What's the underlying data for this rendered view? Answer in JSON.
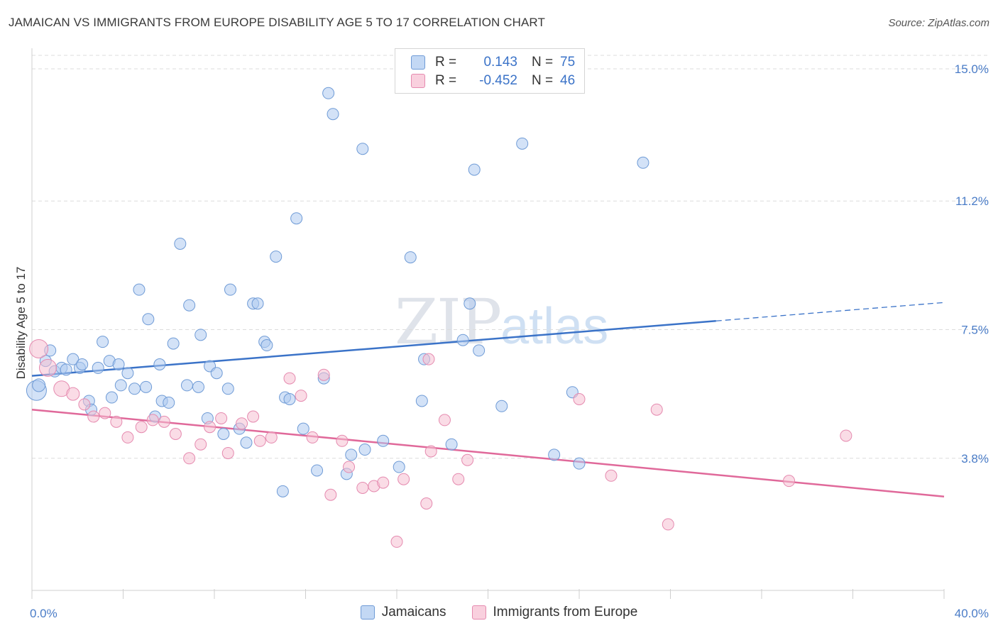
{
  "title": "JAMAICAN VS IMMIGRANTS FROM EUROPE DISABILITY AGE 5 TO 17 CORRELATION CHART",
  "source": "Source: ZipAtlas.com",
  "watermark": {
    "zip": "ZIP",
    "atlas": "atlas"
  },
  "colors": {
    "blue": "#3b73c8",
    "blue_fill": "#aecbf0",
    "pink": "#e0699a",
    "pink_fill": "#f6bfd2",
    "grid": "#dcdcdc"
  },
  "legend": {
    "rows": [
      {
        "r_label": "R =",
        "r_value": "0.143",
        "n_label": "N =",
        "n_value": "75"
      },
      {
        "r_label": "R =",
        "r_value": "-0.452",
        "n_label": "N =",
        "n_value": "46"
      }
    ]
  },
  "bottom_legend": [
    "Jamaicans",
    "Immigrants from Europe"
  ],
  "chart_data": {
    "type": "scatter",
    "ylabel": "Disability Age 5 to 17",
    "xlabel": "",
    "xlim": [
      0,
      40
    ],
    "ylim": [
      0,
      15.6
    ],
    "y_ticks": [
      {
        "v": 3.8,
        "label": "3.8%"
      },
      {
        "v": 7.5,
        "label": "7.5%"
      },
      {
        "v": 11.2,
        "label": "11.2%"
      },
      {
        "v": 15.0,
        "label": "15.0%"
      }
    ],
    "x_tick_labels": [
      {
        "v": 0,
        "label": "0.0%"
      },
      {
        "v": 40,
        "label": "40.0%"
      }
    ],
    "legend_position": "top-center",
    "grid": true,
    "series": [
      {
        "name": "Jamaicans",
        "color": "#3b73c8",
        "trend": {
          "x0": 0,
          "y0": 6.17,
          "x1": 30,
          "y1": 7.75,
          "dash_x1": 40,
          "dash_y1": 8.28
        },
        "points": [
          [
            0.2,
            5.75,
            14
          ],
          [
            0.3,
            5.9,
            9
          ],
          [
            0.6,
            6.6,
            8
          ],
          [
            0.8,
            6.9,
            8
          ],
          [
            1.0,
            6.3,
            8
          ],
          [
            1.3,
            6.4,
            8
          ],
          [
            1.5,
            6.35,
            8
          ],
          [
            1.8,
            6.65,
            8
          ],
          [
            2.1,
            6.4,
            8
          ],
          [
            2.2,
            6.5,
            8
          ],
          [
            2.5,
            5.45,
            8
          ],
          [
            2.6,
            5.2,
            8
          ],
          [
            2.9,
            6.4,
            8
          ],
          [
            3.1,
            7.15,
            8
          ],
          [
            3.4,
            6.6,
            8
          ],
          [
            3.5,
            5.55,
            8
          ],
          [
            3.8,
            6.5,
            8
          ],
          [
            3.9,
            5.9,
            8
          ],
          [
            4.2,
            6.25,
            8
          ],
          [
            4.5,
            5.8,
            8
          ],
          [
            4.7,
            8.65,
            8
          ],
          [
            5.0,
            5.85,
            8
          ],
          [
            5.1,
            7.8,
            8
          ],
          [
            5.4,
            5.0,
            8
          ],
          [
            5.6,
            6.5,
            8
          ],
          [
            5.7,
            5.45,
            8
          ],
          [
            6.0,
            5.4,
            8
          ],
          [
            6.2,
            7.1,
            8
          ],
          [
            6.5,
            9.97,
            8
          ],
          [
            6.8,
            5.9,
            8
          ],
          [
            6.9,
            8.2,
            8
          ],
          [
            7.3,
            5.85,
            8
          ],
          [
            7.4,
            7.35,
            8
          ],
          [
            7.7,
            4.95,
            8
          ],
          [
            7.8,
            6.45,
            8
          ],
          [
            8.1,
            6.25,
            8
          ],
          [
            8.4,
            4.5,
            8
          ],
          [
            8.6,
            5.8,
            8
          ],
          [
            8.7,
            8.65,
            8
          ],
          [
            9.1,
            4.65,
            8
          ],
          [
            9.4,
            4.25,
            8
          ],
          [
            9.7,
            8.25,
            8
          ],
          [
            9.9,
            8.25,
            8
          ],
          [
            10.2,
            7.15,
            8
          ],
          [
            10.3,
            7.05,
            8
          ],
          [
            10.7,
            9.6,
            8
          ],
          [
            11.0,
            2.85,
            8
          ],
          [
            11.1,
            5.55,
            8
          ],
          [
            11.3,
            5.5,
            8
          ],
          [
            11.6,
            10.7,
            8
          ],
          [
            11.9,
            4.65,
            8
          ],
          [
            12.5,
            3.45,
            8
          ],
          [
            12.8,
            6.1,
            8
          ],
          [
            13.0,
            14.3,
            8
          ],
          [
            13.2,
            13.7,
            8
          ],
          [
            13.8,
            3.35,
            8
          ],
          [
            14.0,
            3.9,
            8
          ],
          [
            14.5,
            12.7,
            8
          ],
          [
            14.6,
            4.05,
            8
          ],
          [
            15.4,
            4.3,
            8
          ],
          [
            16.1,
            3.55,
            8
          ],
          [
            16.6,
            9.58,
            8
          ],
          [
            17.1,
            5.45,
            8
          ],
          [
            17.2,
            6.65,
            8
          ],
          [
            18.4,
            4.2,
            8
          ],
          [
            18.9,
            7.2,
            8
          ],
          [
            19.2,
            8.25,
            8
          ],
          [
            19.4,
            12.1,
            8
          ],
          [
            19.6,
            6.9,
            8
          ],
          [
            20.6,
            5.3,
            8
          ],
          [
            21.5,
            12.85,
            8
          ],
          [
            22.9,
            3.9,
            8
          ],
          [
            23.7,
            5.7,
            8
          ],
          [
            24.0,
            3.65,
            8
          ],
          [
            26.8,
            12.3,
            8
          ]
        ]
      },
      {
        "name": "Immigrants from Europe",
        "color": "#e0699a",
        "trend": {
          "x0": 0,
          "y0": 5.2,
          "x1": 40,
          "y1": 2.7
        },
        "points": [
          [
            0.3,
            6.95,
            13
          ],
          [
            0.7,
            6.4,
            12
          ],
          [
            1.3,
            5.8,
            11
          ],
          [
            1.8,
            5.65,
            9
          ],
          [
            2.3,
            5.35,
            8
          ],
          [
            2.7,
            5.0,
            8
          ],
          [
            3.2,
            5.1,
            8
          ],
          [
            3.7,
            4.85,
            8
          ],
          [
            4.2,
            4.4,
            8
          ],
          [
            4.8,
            4.7,
            8
          ],
          [
            5.3,
            4.9,
            8
          ],
          [
            5.8,
            4.85,
            8
          ],
          [
            6.3,
            4.5,
            8
          ],
          [
            6.9,
            3.8,
            8
          ],
          [
            7.4,
            4.2,
            8
          ],
          [
            7.8,
            4.7,
            8
          ],
          [
            8.3,
            4.95,
            8
          ],
          [
            8.6,
            3.95,
            8
          ],
          [
            9.2,
            4.8,
            8
          ],
          [
            9.7,
            5.0,
            8
          ],
          [
            10.0,
            4.3,
            8
          ],
          [
            10.5,
            4.4,
            8
          ],
          [
            11.3,
            6.1,
            8
          ],
          [
            11.8,
            5.6,
            8
          ],
          [
            12.3,
            4.4,
            8
          ],
          [
            12.8,
            6.2,
            8
          ],
          [
            13.1,
            2.75,
            8
          ],
          [
            13.6,
            4.3,
            8
          ],
          [
            13.9,
            3.55,
            8
          ],
          [
            14.5,
            2.95,
            8
          ],
          [
            15.0,
            3.0,
            8
          ],
          [
            15.4,
            3.1,
            8
          ],
          [
            16.0,
            1.4,
            8
          ],
          [
            16.3,
            3.2,
            8
          ],
          [
            17.3,
            2.5,
            8
          ],
          [
            17.4,
            6.65,
            8
          ],
          [
            17.5,
            4.0,
            8
          ],
          [
            18.1,
            4.9,
            8
          ],
          [
            18.7,
            3.2,
            8
          ],
          [
            19.1,
            3.75,
            8
          ],
          [
            24.0,
            5.5,
            8
          ],
          [
            25.4,
            3.3,
            8
          ],
          [
            27.4,
            5.2,
            8
          ],
          [
            27.9,
            1.9,
            8
          ],
          [
            33.2,
            3.15,
            8
          ],
          [
            35.7,
            4.45,
            8
          ]
        ]
      }
    ]
  }
}
